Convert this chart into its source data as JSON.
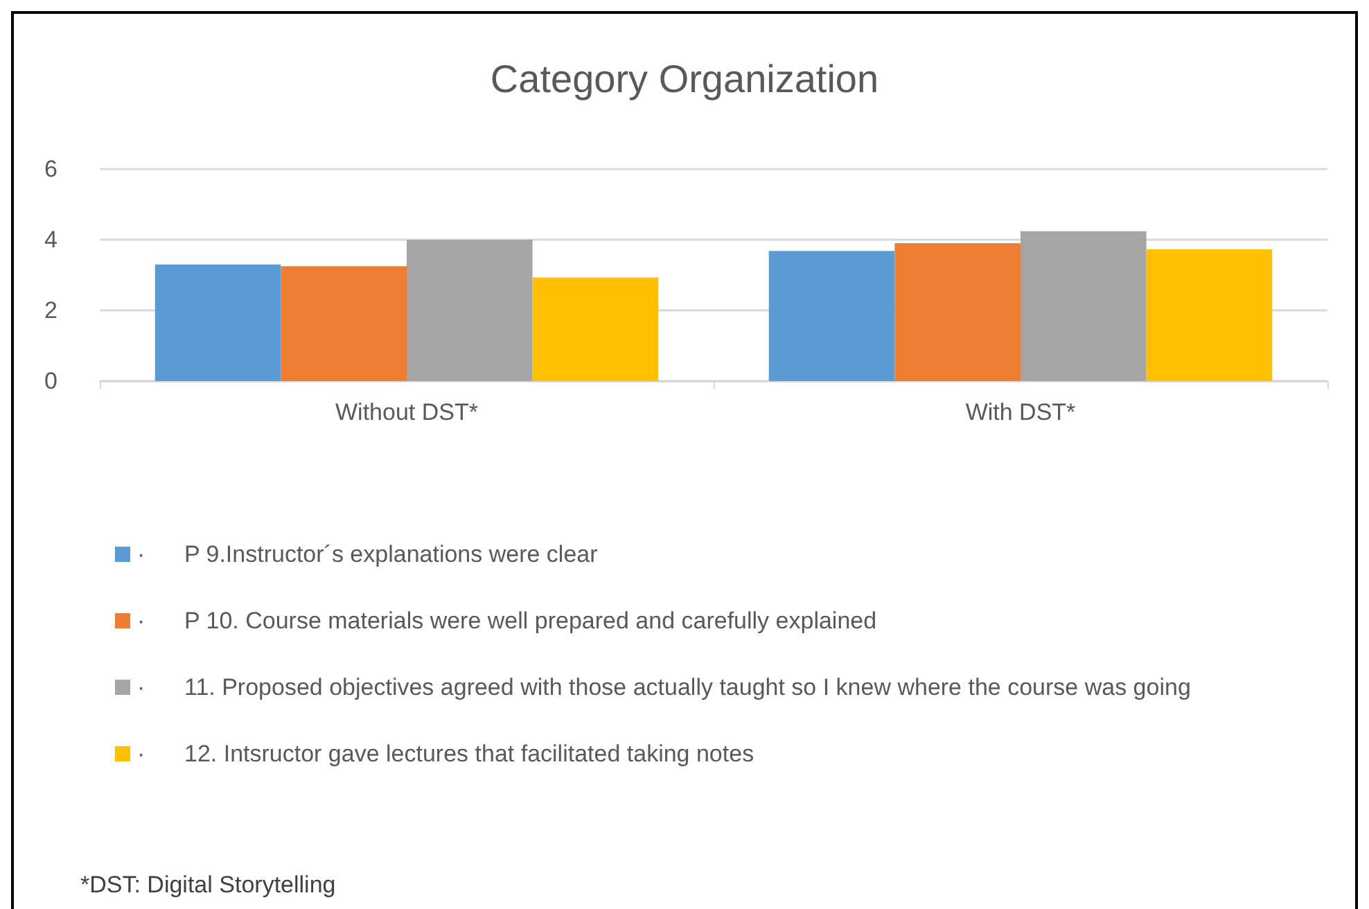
{
  "chart_data": {
    "type": "bar",
    "title": "Category Organization",
    "categories": [
      "Without DST*",
      "With DST*"
    ],
    "series": [
      {
        "name": "·      P 9.Instructor´s explanations were clear",
        "color": "#5b9bd5",
        "values": [
          3.3,
          3.68
        ]
      },
      {
        "name": "·      P 10. Course materials were well prepared and carefully explained",
        "color": "#ed7d31",
        "values": [
          3.25,
          3.9
        ]
      },
      {
        "name": "·      11. Proposed objectives agreed with those actually taught so I knew where the course was going",
        "color": "#a5a5a5",
        "values": [
          4.0,
          4.24
        ]
      },
      {
        "name": "·      12. Intsructor gave lectures that facilitated taking notes",
        "color": "#ffc000",
        "values": [
          2.93,
          3.73
        ]
      }
    ],
    "ylim": [
      0,
      6
    ],
    "yticks": [
      0,
      2,
      4,
      6
    ],
    "grid": "y",
    "legend": "bottom",
    "annotations": [
      "*DST: Digital Storytelling"
    ]
  }
}
